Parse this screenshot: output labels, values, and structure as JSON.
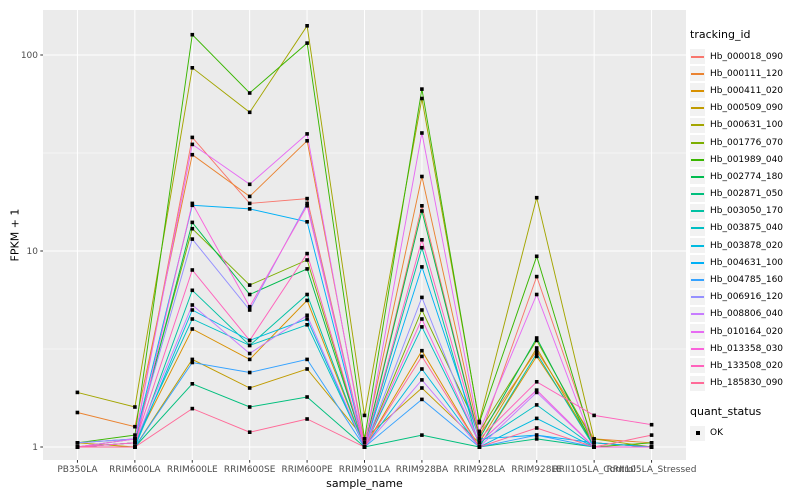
{
  "figure": {
    "panel_bg": "#EBEBEB",
    "grid_color": "#FFFFFF",
    "axis_text_color": "#4D4D4D",
    "tick_color": "#333333",
    "marker_color": "#000000"
  },
  "legend": {
    "tracking_title": "tracking_id",
    "quant_title": "quant_status",
    "quant_ok_label": "OK"
  },
  "chart_data": {
    "type": "line",
    "title": "",
    "xlabel": "sample_name",
    "ylabel": "FPKM + 1",
    "y_scale": "log10",
    "y_ticks": [
      1,
      10,
      100
    ],
    "y_tick_labels": [
      "1",
      "10",
      "100"
    ],
    "y_minor_breaks": [
      3.162,
      31.62
    ],
    "ylim": [
      0.86,
      170
    ],
    "grid": true,
    "legend_position": "right",
    "marker": {
      "shape": "filled-square",
      "color": "#000000",
      "status_label": "OK"
    },
    "categories": [
      "PB350LA",
      "RRIM600LA",
      "RRIM600LE",
      "RRIM600SE",
      "RRIM600PE",
      "RRIM901LA",
      "RRIM928BA",
      "RRIM928LA",
      "RRIM928LE",
      "RRII105LA_Control",
      "RRII105LA_Stressed"
    ],
    "series": [
      {
        "name": "Hb_000018_090",
        "color": "#F8766D",
        "values": [
          1.05,
          1.1,
          38,
          17.5,
          18.5,
          1.0,
          17.0,
          1.1,
          7.4,
          1.05,
          1.0
        ]
      },
      {
        "name": "Hb_000111_120",
        "color": "#EA8331",
        "values": [
          1.5,
          1.27,
          31,
          19.0,
          36.5,
          1.05,
          24.0,
          1.15,
          3.1,
          1.1,
          1.05
        ]
      },
      {
        "name": "Hb_000411_020",
        "color": "#D89000",
        "values": [
          1.0,
          1.05,
          4.0,
          2.8,
          5.6,
          1.0,
          3.1,
          1.0,
          2.9,
          1.05,
          1.0
        ]
      },
      {
        "name": "Hb_000509_090",
        "color": "#C09B00",
        "values": [
          1.05,
          1.0,
          2.8,
          2.0,
          2.5,
          1.1,
          2.0,
          1.05,
          3.2,
          1.0,
          1.0
        ]
      },
      {
        "name": "Hb_000631_100",
        "color": "#A3A500",
        "values": [
          1.9,
          1.6,
          86,
          51,
          141,
          1.45,
          60,
          1.35,
          18.7,
          1.1,
          1.0
        ]
      },
      {
        "name": "Hb_001776_070",
        "color": "#7CAE00",
        "values": [
          1.0,
          1.1,
          13,
          6.7,
          9.0,
          1.0,
          5.0,
          1.2,
          3.5,
          1.05,
          1.0
        ]
      },
      {
        "name": "Hb_001989_040",
        "color": "#39B600",
        "values": [
          1.05,
          1.15,
          127,
          64,
          115,
          1.1,
          67,
          1.33,
          9.4,
          1.0,
          1.05
        ]
      },
      {
        "name": "Hb_002774_180",
        "color": "#00BB4E",
        "values": [
          1.0,
          1.05,
          14,
          6.0,
          8.1,
          1.0,
          16,
          1.1,
          3.6,
          1.0,
          1.0
        ]
      },
      {
        "name": "Hb_002871_050",
        "color": "#00BF7D",
        "values": [
          1.0,
          1.0,
          2.1,
          1.6,
          1.8,
          1.0,
          1.15,
          1.0,
          1.1,
          1.0,
          1.0
        ]
      },
      {
        "name": "Hb_003050_170",
        "color": "#00C1A3",
        "values": [
          1.0,
          1.0,
          6.3,
          3.3,
          6.0,
          1.0,
          10.4,
          1.0,
          3.0,
          1.0,
          1.0
        ]
      },
      {
        "name": "Hb_003875_040",
        "color": "#00BFC4",
        "values": [
          1.0,
          1.05,
          4.5,
          3.3,
          4.2,
          1.0,
          4.1,
          1.05,
          1.64,
          1.0,
          1.0
        ]
      },
      {
        "name": "Hb_003878_020",
        "color": "#00BAE0",
        "values": [
          1.0,
          1.0,
          5.0,
          3.5,
          4.5,
          1.0,
          2.5,
          1.0,
          1.4,
          1.0,
          1.0
        ]
      },
      {
        "name": "Hb_004631_100",
        "color": "#00B0F6",
        "values": [
          1.05,
          1.1,
          17.1,
          16.4,
          14.1,
          1.0,
          8.3,
          1.1,
          1.15,
          1.05,
          1.0
        ]
      },
      {
        "name": "Hb_004785_160",
        "color": "#35A2FF",
        "values": [
          1.0,
          1.0,
          2.7,
          2.4,
          2.8,
          1.0,
          1.75,
          1.0,
          1.15,
          1.0,
          1.0
        ]
      },
      {
        "name": "Hb_006916_120",
        "color": "#9590FF",
        "values": [
          1.05,
          1.1,
          11.5,
          5.0,
          17.5,
          1.0,
          5.8,
          1.05,
          1.95,
          1.0,
          1.0
        ]
      },
      {
        "name": "Hb_008806_040",
        "color": "#C77CFF",
        "values": [
          1.0,
          1.05,
          5.3,
          3.0,
          4.7,
          1.0,
          2.2,
          1.0,
          1.9,
          1.0,
          1.0
        ]
      },
      {
        "name": "Hb_010164_020",
        "color": "#E76BF3",
        "values": [
          1.0,
          1.1,
          35,
          21.9,
          39.6,
          1.0,
          40,
          1.2,
          6.0,
          1.0,
          1.0
        ]
      },
      {
        "name": "Hb_013358_030",
        "color": "#FA62DB",
        "values": [
          1.0,
          1.0,
          17.5,
          5.2,
          17.0,
          1.0,
          4.5,
          1.05,
          1.95,
          1.0,
          1.0
        ]
      },
      {
        "name": "Hb_133508_020",
        "color": "#FF62BC",
        "values": [
          1.0,
          1.05,
          8.0,
          3.5,
          9.7,
          1.0,
          11.4,
          1.1,
          2.15,
          1.45,
          1.3
        ]
      },
      {
        "name": "Hb_185830_090",
        "color": "#FF6A98",
        "values": [
          1.0,
          1.0,
          1.57,
          1.19,
          1.39,
          1.0,
          2.9,
          1.0,
          1.25,
          1.0,
          1.15
        ]
      }
    ]
  }
}
